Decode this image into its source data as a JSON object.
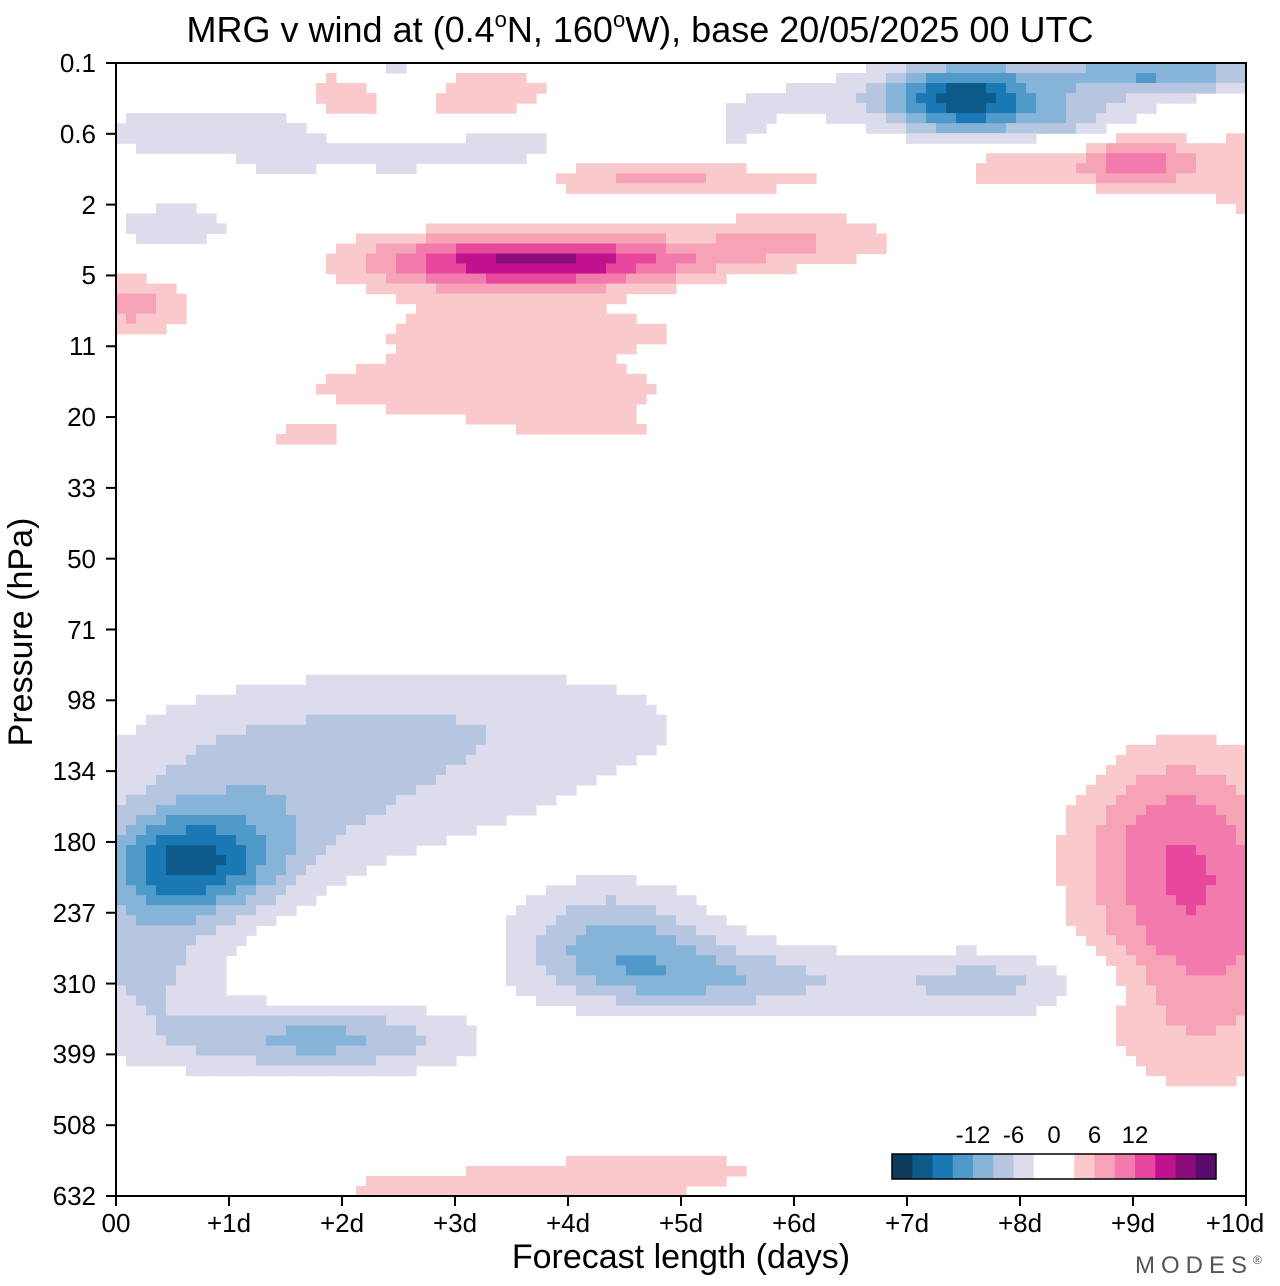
{
  "title": {
    "prefix": "MRG v wind at (0.4",
    "deg1": "o",
    "mid": "N, 160",
    "deg2": "o",
    "suffix": "W),  base 20/05/2025  00 UTC"
  },
  "logo": "MODES",
  "logo_mark": "®",
  "chart_data": {
    "type": "heatmap",
    "title": "MRG v wind at (0.4°N, 160°W),  base 20/05/2025  00 UTC",
    "xlabel": "Forecast length (days)",
    "ylabel": "Pressure (hPa)",
    "x_ticks": [
      "00",
      "+1d",
      "+2d",
      "+3d",
      "+4d",
      "+5d",
      "+6d",
      "+7d",
      "+8d",
      "+9d",
      "+10d"
    ],
    "xlim": [
      0,
      10
    ],
    "y_ticks": [
      "0.1",
      "0.6",
      "2",
      "5",
      "11",
      "20",
      "33",
      "50",
      "71",
      "98",
      "134",
      "180",
      "237",
      "310",
      "399",
      "508",
      "632"
    ],
    "colorbar": {
      "ticks": [
        "-12",
        "-6",
        "0",
        "6",
        "12"
      ],
      "levels": [
        -15,
        -12,
        -9,
        -6,
        -3,
        0,
        3,
        6,
        9,
        12,
        15
      ],
      "colors": [
        "#0c3b5c",
        "#0c5b8a",
        "#1a78b4",
        "#4f9ac8",
        "#86b3d8",
        "#b6c6e0",
        "#dcdcec",
        "#ffffff",
        "#ffffff",
        "#f9c9cc",
        "#f6a3b8",
        "#f37aac",
        "#e8479e",
        "#c0128e",
        "#8a0d7a",
        "#5a0c6c"
      ]
    },
    "blobs": [
      {
        "x": 0.7,
        "y": 11.3,
        "sx": 0.55,
        "sy": 0.5,
        "v": -15
      },
      {
        "x": 0.25,
        "y": 12.6,
        "sx": 0.5,
        "sy": 0.9,
        "v": -7
      },
      {
        "x": 1.8,
        "y": 13.8,
        "sx": 0.9,
        "sy": 0.35,
        "v": -10
      },
      {
        "x": 1.2,
        "y": 10.3,
        "sx": 1.0,
        "sy": 0.9,
        "v": -5
      },
      {
        "x": 2.5,
        "y": 10.0,
        "sx": 1.6,
        "sy": 0.9,
        "v": -4
      },
      {
        "x": 4.4,
        "y": 12.3,
        "sx": 0.6,
        "sy": 0.5,
        "v": -9
      },
      {
        "x": 5.0,
        "y": 12.9,
        "sx": 0.8,
        "sy": 0.35,
        "v": -6
      },
      {
        "x": 6.2,
        "y": 13.0,
        "sx": 1.5,
        "sy": 0.4,
        "v": -4
      },
      {
        "x": 7.9,
        "y": 13.0,
        "sx": 0.7,
        "sy": 0.35,
        "v": -5
      },
      {
        "x": 3.6,
        "y": 9.2,
        "sx": 1.4,
        "sy": 0.6,
        "v": -3
      },
      {
        "x": 7.5,
        "y": 9.7,
        "sx": 1.0,
        "sy": 0.4,
        "v": -2
      },
      {
        "x": 9.6,
        "y": 12.3,
        "sx": 0.7,
        "sy": 1.4,
        "v": 10
      },
      {
        "x": 9.3,
        "y": 10.8,
        "sx": 0.6,
        "sy": 0.9,
        "v": 6
      },
      {
        "x": 5.0,
        "y": 15.6,
        "sx": 1.2,
        "sy": 0.45,
        "v": 3
      },
      {
        "x": 2.5,
        "y": 15.9,
        "sx": 1.5,
        "sy": 0.35,
        "v": 3
      },
      {
        "x": 4.0,
        "y": 2.8,
        "sx": 0.9,
        "sy": 0.25,
        "v": 15
      },
      {
        "x": 3.0,
        "y": 2.8,
        "sx": 0.8,
        "sy": 0.3,
        "v": 7
      },
      {
        "x": 6.0,
        "y": 2.5,
        "sx": 0.7,
        "sy": 0.3,
        "v": 6
      },
      {
        "x": 3.5,
        "y": 3.8,
        "sx": 1.8,
        "sy": 0.4,
        "v": 4
      },
      {
        "x": 3.2,
        "y": 4.6,
        "sx": 1.2,
        "sy": 0.25,
        "v": 5
      },
      {
        "x": 4.2,
        "y": 5.2,
        "sx": 1.3,
        "sy": 0.3,
        "v": 3
      },
      {
        "x": 1.6,
        "y": 5.3,
        "sx": 0.5,
        "sy": 0.25,
        "v": 3
      },
      {
        "x": 4.9,
        "y": 1.6,
        "sx": 1.0,
        "sy": 0.2,
        "v": 7
      },
      {
        "x": 3.1,
        "y": 0.45,
        "sx": 0.6,
        "sy": 0.3,
        "v": 6
      },
      {
        "x": 2.0,
        "y": 0.5,
        "sx": 0.3,
        "sy": 0.3,
        "v": 6
      },
      {
        "x": 9.0,
        "y": 1.4,
        "sx": 0.35,
        "sy": 0.35,
        "v": 12
      },
      {
        "x": 8.0,
        "y": 1.4,
        "sx": 0.4,
        "sy": 0.3,
        "v": 6
      },
      {
        "x": 10.0,
        "y": 1.6,
        "sx": 0.4,
        "sy": 0.5,
        "v": 6
      },
      {
        "x": 7.5,
        "y": 0.5,
        "sx": 0.45,
        "sy": 0.35,
        "v": -17
      },
      {
        "x": 9.2,
        "y": 0.15,
        "sx": 0.8,
        "sy": 0.2,
        "v": -12
      },
      {
        "x": 8.5,
        "y": 0.8,
        "sx": 0.6,
        "sy": 0.3,
        "v": -8
      },
      {
        "x": 0.5,
        "y": 0.95,
        "sx": 0.5,
        "sy": 0.3,
        "v": -5
      },
      {
        "x": 1.5,
        "y": 1.1,
        "sx": 0.35,
        "sy": 0.4,
        "v": -5
      },
      {
        "x": 2.5,
        "y": 0.2,
        "sx": 0.3,
        "sy": 0.3,
        "v": -6
      },
      {
        "x": 2.5,
        "y": 1.3,
        "sx": 0.4,
        "sy": 0.3,
        "v": -4
      },
      {
        "x": 3.5,
        "y": 1.2,
        "sx": 0.4,
        "sy": 0.3,
        "v": -5
      },
      {
        "x": 5.5,
        "y": 1.1,
        "sx": 0.3,
        "sy": 0.4,
        "v": -3
      },
      {
        "x": 6.5,
        "y": 0.5,
        "sx": 0.8,
        "sy": 0.3,
        "v": -4
      },
      {
        "x": 0.5,
        "y": 2.3,
        "sx": 0.6,
        "sy": 0.35,
        "v": -4
      },
      {
        "x": 9.0,
        "y": 2.0,
        "sx": 0.5,
        "sy": 0.25,
        "v": -4
      },
      {
        "x": 1.5,
        "y": 3.6,
        "sx": 0.5,
        "sy": 0.3,
        "v": -3
      },
      {
        "x": 7.0,
        "y": 3.2,
        "sx": 1.2,
        "sy": 0.2,
        "v": -3
      },
      {
        "x": 0.1,
        "y": 3.4,
        "sx": 0.4,
        "sy": 0.3,
        "v": 7
      }
    ]
  }
}
